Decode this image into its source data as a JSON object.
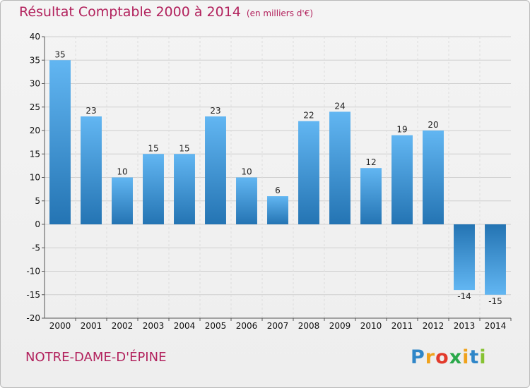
{
  "chart_data": {
    "type": "bar",
    "title": "Résultat Comptable 2000 à 2014",
    "subtitle": "(en milliers d'€)",
    "categories": [
      "2000",
      "2001",
      "2002",
      "2003",
      "2004",
      "2005",
      "2006",
      "2007",
      "2008",
      "2009",
      "2010",
      "2011",
      "2012",
      "2013",
      "2014"
    ],
    "values": [
      35,
      23,
      10,
      15,
      15,
      23,
      10,
      6,
      22,
      24,
      12,
      19,
      20,
      -14,
      -15
    ],
    "ylim": [
      -20,
      40
    ],
    "yticks": [
      -20,
      -15,
      -10,
      -5,
      0,
      5,
      10,
      15,
      20,
      25,
      30,
      35,
      40
    ],
    "grid": true,
    "colors": {
      "bar_light": "#5fb4f0",
      "bar_dark": "#2576b4",
      "title": "#b2225d",
      "grid": "#cccccc"
    }
  },
  "footer": {
    "place": "NOTRE-DAME-D'ÉPINE",
    "logo_letters": [
      {
        "ch": "P",
        "color": "#2f86c8"
      },
      {
        "ch": "r",
        "color": "#f0a21b"
      },
      {
        "ch": "o",
        "color": "#e23a2b"
      },
      {
        "ch": "x",
        "color": "#2aa84a"
      },
      {
        "ch": "i",
        "color": "#f0a21b"
      },
      {
        "ch": "t",
        "color": "#2f86c8"
      },
      {
        "ch": "i",
        "color": "#86c232"
      }
    ]
  }
}
